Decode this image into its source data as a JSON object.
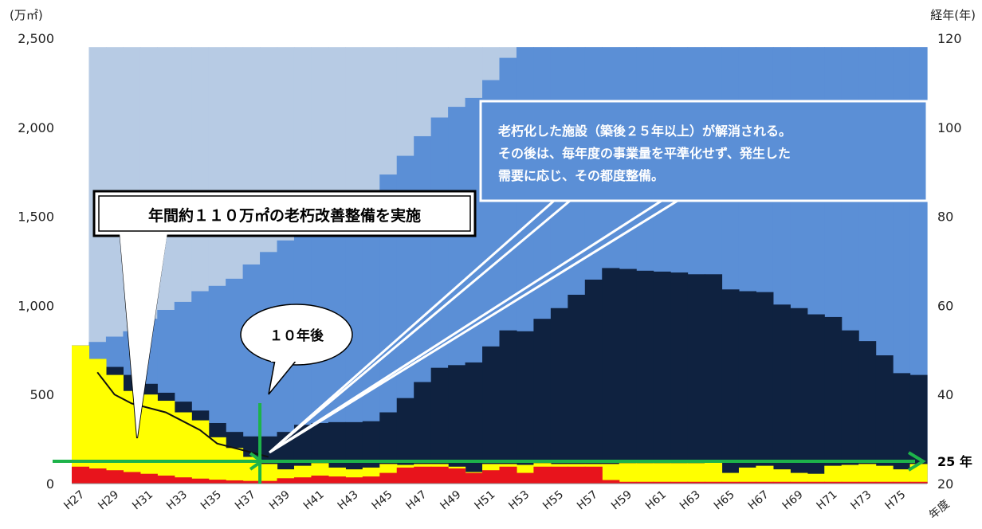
{
  "chart_data": {
    "type": "area",
    "title": "",
    "y_left_unit": "(万㎡)",
    "y_right_unit": "経年(年)",
    "x_unit": "年度",
    "ylim": [
      0,
      2500
    ],
    "y2lim": [
      20,
      120
    ],
    "y_ticks": [
      "0",
      "500",
      "1,000",
      "1,500",
      "2,000",
      "2,500"
    ],
    "y2_ticks": [
      "20",
      "40",
      "60",
      "80",
      "100",
      "120"
    ],
    "categories": [
      "H27",
      "H28",
      "H29",
      "H30",
      "H31",
      "H32",
      "H33",
      "H34",
      "H35",
      "H36",
      "H37",
      "H38",
      "H39",
      "H40",
      "H41",
      "H42",
      "H43",
      "H44",
      "H45",
      "H46",
      "H47",
      "H48",
      "H49",
      "H50",
      "H51",
      "H52",
      "H53",
      "H54",
      "H55",
      "H56",
      "H57",
      "H58",
      "H59",
      "H60",
      "H61",
      "H62",
      "H63",
      "H64",
      "H65",
      "H66",
      "H67",
      "H68",
      "H69",
      "H70",
      "H71",
      "H72",
      "H73",
      "H74",
      "H75",
      "H76"
    ],
    "x_tick_labels": [
      "H27",
      "H29",
      "H31",
      "H33",
      "H35",
      "H37",
      "H39",
      "H41",
      "H43",
      "H45",
      "H47",
      "H49",
      "H51",
      "H53",
      "H55",
      "H57",
      "H59",
      "H61",
      "H63",
      "H65",
      "H67",
      "H69",
      "H71",
      "H73",
      "H75"
    ],
    "colors": {
      "red": "#e8141c",
      "yellow": "#ffff00",
      "navy": "#0f2240",
      "mid_blue": "#5b8fd6",
      "light_blue": "#b7cbe4",
      "age_line": "#111111",
      "arrow_green": "#1db34a"
    },
    "layers": {
      "red": [
        95,
        85,
        75,
        65,
        55,
        45,
        35,
        28,
        22,
        18,
        15,
        15,
        30,
        35,
        45,
        40,
        35,
        40,
        60,
        90,
        95,
        95,
        85,
        60,
        75,
        95,
        60,
        95,
        95,
        95,
        95,
        20,
        10,
        10,
        10,
        10,
        10,
        10,
        10,
        10,
        10,
        10,
        10,
        10,
        10,
        10,
        10,
        10,
        10,
        10
      ],
      "yellow_top": [
        775,
        700,
        610,
        520,
        500,
        465,
        400,
        355,
        260,
        200,
        150,
        110,
        80,
        100,
        115,
        90,
        80,
        90,
        110,
        105,
        110,
        110,
        95,
        65,
        110,
        110,
        105,
        115,
        110,
        110,
        110,
        110,
        115,
        115,
        115,
        115,
        115,
        120,
        60,
        90,
        100,
        80,
        60,
        55,
        100,
        105,
        110,
        100,
        80,
        110
      ],
      "navy_top": [
        775,
        700,
        655,
        610,
        560,
        510,
        460,
        410,
        340,
        290,
        265,
        265,
        290,
        330,
        340,
        345,
        345,
        350,
        400,
        480,
        570,
        650,
        665,
        680,
        770,
        860,
        855,
        925,
        985,
        1060,
        1145,
        1210,
        1205,
        1195,
        1190,
        1185,
        1175,
        1175,
        1090,
        1080,
        1075,
        1005,
        985,
        950,
        935,
        860,
        800,
        720,
        620,
        610
      ],
      "mid_blue_top": [
        775,
        795,
        825,
        855,
        925,
        975,
        1020,
        1080,
        1110,
        1150,
        1230,
        1300,
        1365,
        1430,
        1490,
        1550,
        1595,
        1630,
        1735,
        1840,
        1950,
        2055,
        2115,
        2165,
        2265,
        2390,
        2450,
        2450,
        2450,
        2450,
        2450,
        2450,
        2450,
        2450,
        2450,
        2450,
        2450,
        2450,
        2450,
        2450,
        2450,
        2450,
        2450,
        2450,
        2450,
        2450,
        2450,
        2450,
        2450,
        2450
      ],
      "light_blue_top": [
        775,
        2450,
        2450,
        2450,
        2450,
        2450,
        2450,
        2450,
        2450,
        2450,
        2450,
        2450,
        2450,
        2450,
        2450,
        2450,
        2450,
        2450,
        2450,
        2450,
        2450,
        2450,
        2450,
        2450,
        2450,
        2450,
        2450,
        2450,
        2450,
        2450,
        2450,
        2450,
        2450,
        2450,
        2450,
        2450,
        2450,
        2450,
        2450,
        2450,
        2450,
        2450,
        2450,
        2450,
        2450,
        2450,
        2450,
        2450,
        2450,
        2450
      ]
    },
    "average_age_line": {
      "x": [
        "H28",
        "H29",
        "H30",
        "H31",
        "H32",
        "H33",
        "H34",
        "H35",
        "H36",
        "H37",
        "H38"
      ],
      "y": [
        45,
        40,
        38,
        37,
        36,
        34,
        32,
        29,
        28,
        27,
        26
      ]
    },
    "reference_age": 25,
    "reference_label": "25 年",
    "marker_category": "H37",
    "annotations": {
      "callout_left": "年間約１１０万㎡の老朽改善整備を実施",
      "callout_mid": "１０年後",
      "callout_right_lines": [
        "老朽化した施設（築後２５年以上）が解消される。",
        "その後は、毎年度の事業量を平準化せず、発生した",
        "需要に応じ、その都度整備。"
      ]
    }
  }
}
